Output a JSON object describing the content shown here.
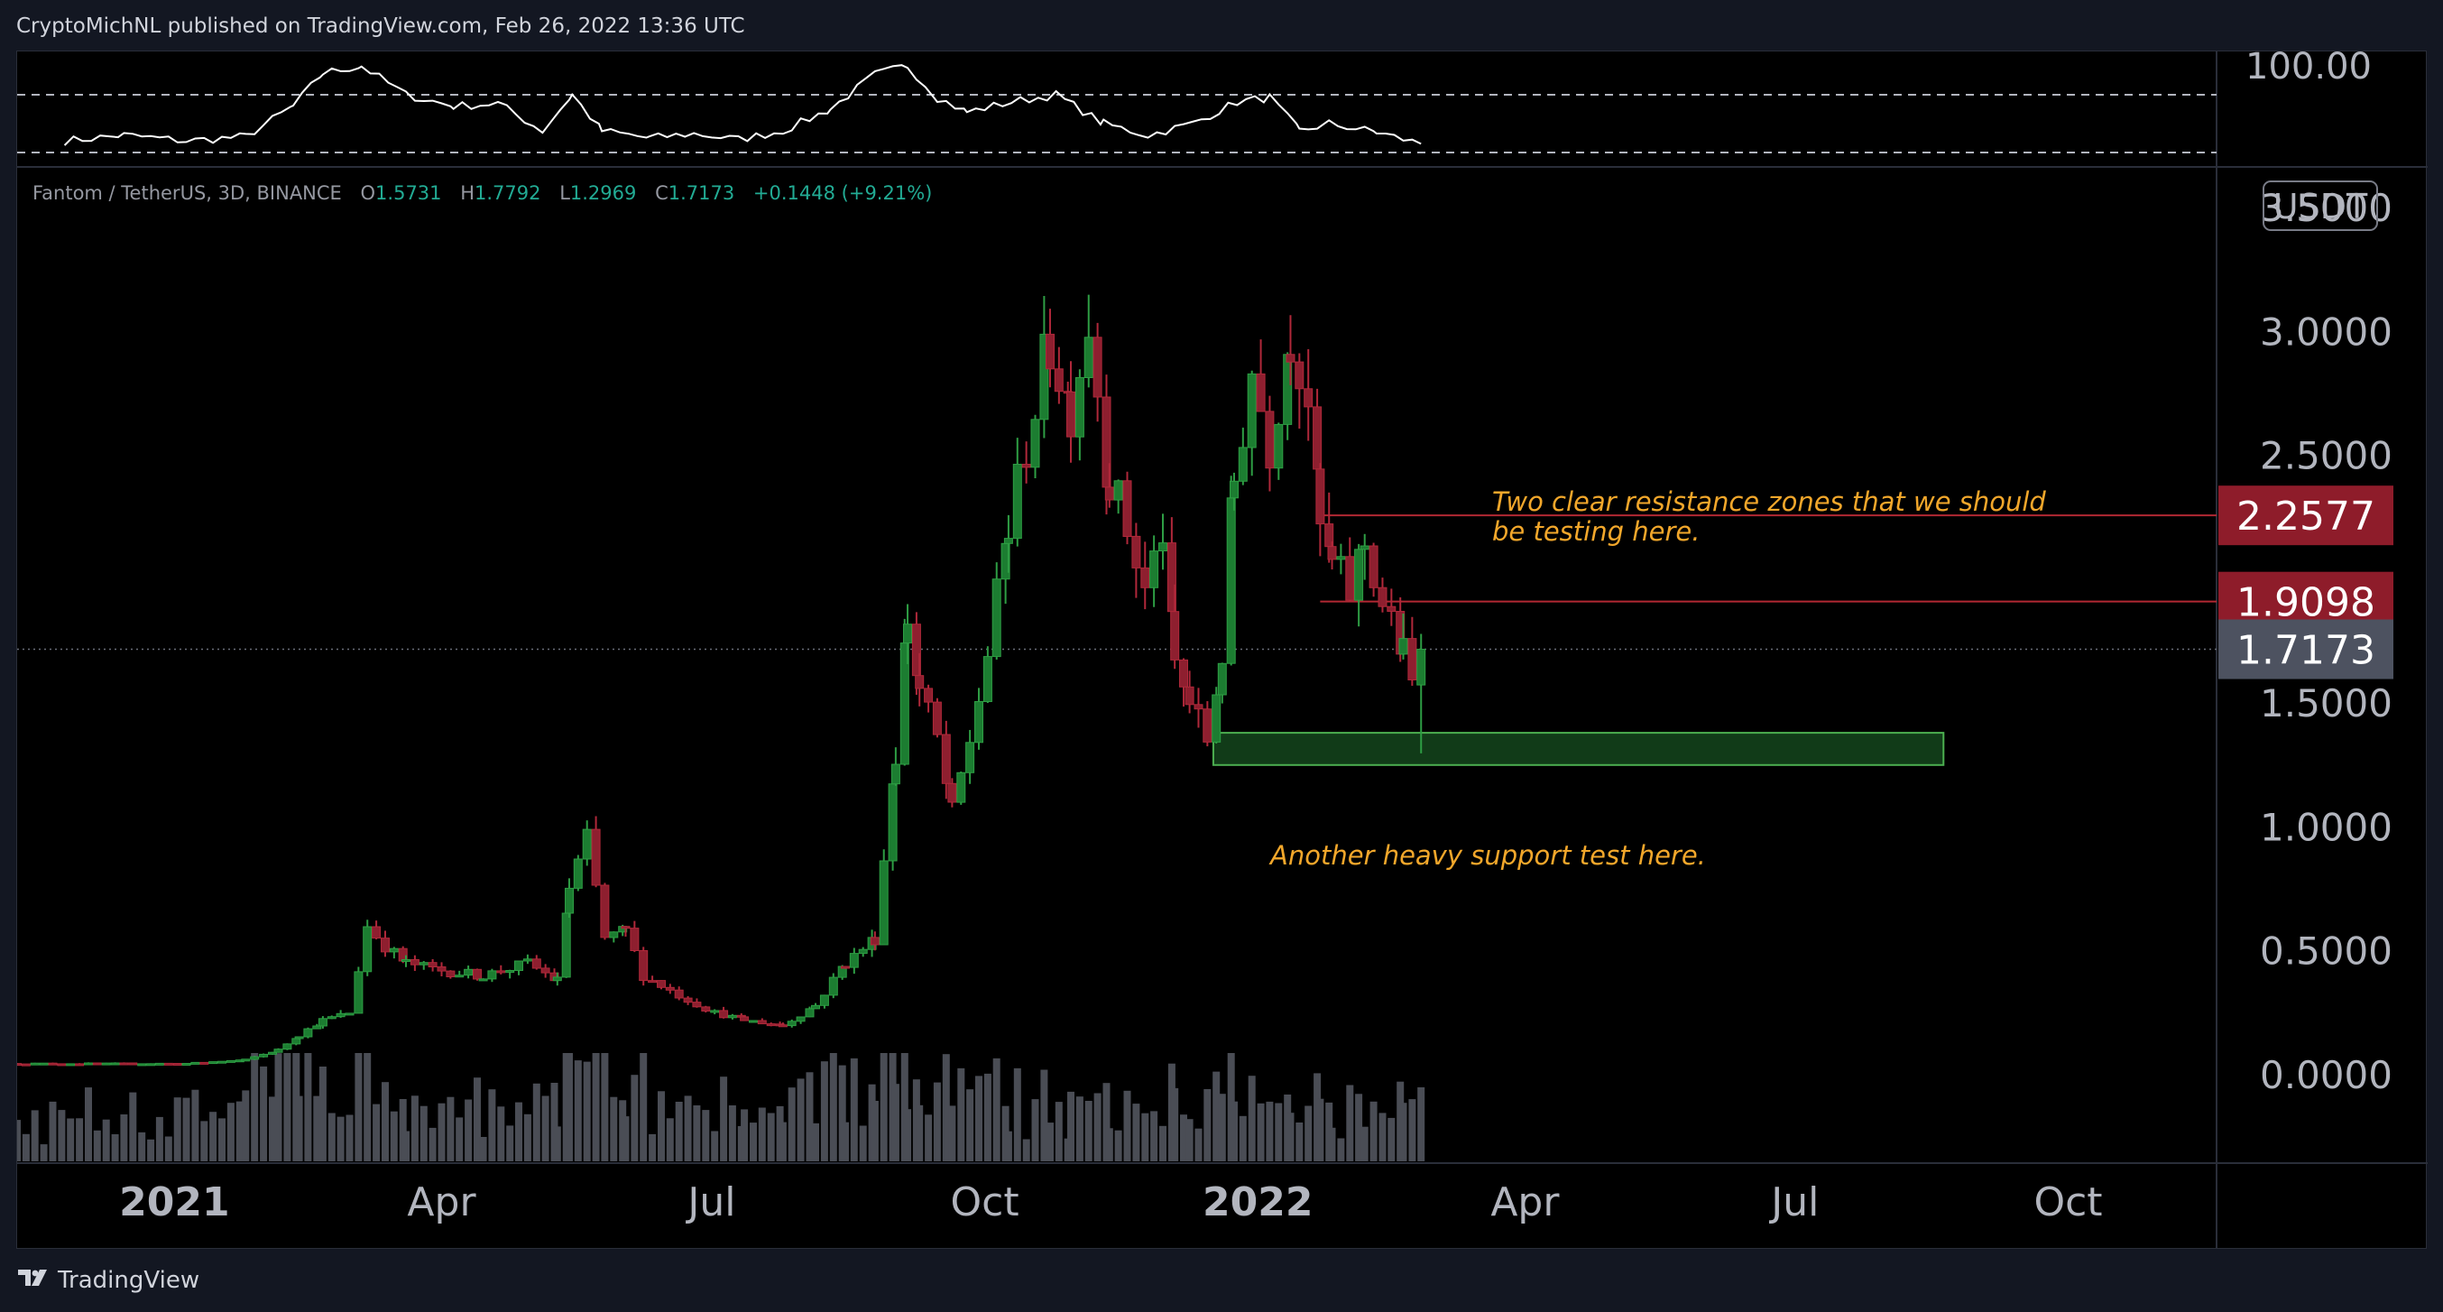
{
  "header": {
    "published_by": "CryptoMichNL published on TradingView.com, Feb 26, 2022 13:36 UTC"
  },
  "footer": {
    "brand": "TradingView",
    "logo_icon": "tradingview-logo-icon"
  },
  "colors": {
    "up": "#26a69a",
    "down": "#ef5350",
    "up_dark": "#1b7a3a",
    "down_dark": "#8b1d2c",
    "resistance_label": "#8e1c2a",
    "price_label": "#4d5260",
    "zone_fill": "#1f6b2c",
    "zone_border": "#4caf50",
    "note": "#f2a72b"
  },
  "legend": {
    "symbol": "Fantom / TetherUS, 3D, BINANCE",
    "open_label": "O",
    "open": "1.5731",
    "high_label": "H",
    "high": "1.7792",
    "low_label": "L",
    "low": "1.2969",
    "close_label": "C",
    "close": "1.7173",
    "change": "+0.1448 (+9.21%)"
  },
  "notes": {
    "resistance": [
      "Two clear resistance zones that we should",
      "be testing here."
    ],
    "support": "Another heavy support test here."
  },
  "chart_data": [
    {
      "type": "line",
      "indicator": "oscillator",
      "y_axis_labels": [
        "100.00"
      ],
      "dashed_levels": [
        70,
        30
      ],
      "ylim": [
        20,
        100
      ],
      "x": [
        "2020-11-25",
        "2020-12-15",
        "2021-01-05",
        "2021-01-25",
        "2021-02-10",
        "2021-02-20",
        "2021-03-05",
        "2021-03-20",
        "2021-04-05",
        "2021-04-20",
        "2021-05-05",
        "2021-05-15",
        "2021-05-25",
        "2021-06-10",
        "2021-06-25",
        "2021-07-10",
        "2021-07-25",
        "2021-08-10",
        "2021-08-25",
        "2021-09-05",
        "2021-09-15",
        "2021-09-25",
        "2021-10-10",
        "2021-10-25",
        "2021-11-10",
        "2021-11-25",
        "2021-12-10",
        "2021-12-25",
        "2022-01-05",
        "2022-01-15",
        "2022-01-25",
        "2022-02-10",
        "2022-02-25"
      ],
      "values": [
        38,
        42,
        38,
        41,
        62,
        85,
        90,
        70,
        62,
        64,
        45,
        70,
        45,
        40,
        43,
        39,
        45,
        60,
        84,
        90,
        68,
        58,
        65,
        70,
        50,
        42,
        50,
        65,
        68,
        45,
        50,
        44,
        36
      ]
    },
    {
      "type": "candlestick",
      "title": "Fantom / TetherUS, 3D, BINANCE",
      "y_tick_labels": [
        "3.5000",
        "3.0000",
        "2.5000",
        "1.5000",
        "1.0000",
        "0.5000",
        "0.0000"
      ],
      "price_labels": [
        {
          "value": 2.2577,
          "text": "2.2577",
          "kind": "resistance"
        },
        {
          "value": 1.9098,
          "text": "1.9098",
          "kind": "resistance"
        },
        {
          "value": 1.7173,
          "text": "1.7173",
          "kind": "last"
        }
      ],
      "axis_unit": "USDT",
      "x_tick_labels": [
        "2021",
        "Apr",
        "Jul",
        "Oct",
        "2022",
        "Apr",
        "Jul",
        "Oct"
      ],
      "x_tick_dates": [
        "2021-01-01",
        "2021-04-01",
        "2021-07-01",
        "2021-10-01",
        "2022-01-01",
        "2022-04-01",
        "2022-07-01",
        "2022-10-01"
      ],
      "x_range": [
        "2020-11-09",
        "2022-11-20"
      ],
      "ylim": [
        -0.35,
        3.65
      ],
      "resistance_levels": [
        2.2577,
        1.9098
      ],
      "last_price": 1.7173,
      "support_zone": {
        "low": 1.25,
        "high": 1.38,
        "from": "2021-12-17",
        "to": "2022-08-20"
      },
      "anchors": [
        [
          "2020-11-09",
          0.045
        ],
        [
          "2021-01-05",
          0.045
        ],
        [
          "2021-01-25",
          0.06
        ],
        [
          "2021-02-05",
          0.1
        ],
        [
          "2021-02-12",
          0.16
        ],
        [
          "2021-02-20",
          0.22
        ],
        [
          "2021-03-01",
          0.25
        ],
        [
          "2021-03-07",
          0.6
        ],
        [
          "2021-03-13",
          0.52
        ],
        [
          "2021-03-20",
          0.45
        ],
        [
          "2021-04-01",
          0.42
        ],
        [
          "2021-04-15",
          0.4
        ],
        [
          "2021-04-30",
          0.45
        ],
        [
          "2021-05-10",
          0.38
        ],
        [
          "2021-05-14",
          0.75
        ],
        [
          "2021-05-20",
          0.95
        ],
        [
          "2021-05-26",
          0.55
        ],
        [
          "2021-06-02",
          0.58
        ],
        [
          "2021-06-08",
          0.4
        ],
        [
          "2021-06-20",
          0.32
        ],
        [
          "2021-07-02",
          0.25
        ],
        [
          "2021-07-12",
          0.22
        ],
        [
          "2021-07-25",
          0.2
        ],
        [
          "2021-08-05",
          0.28
        ],
        [
          "2021-08-15",
          0.45
        ],
        [
          "2021-08-25",
          0.55
        ],
        [
          "2021-09-01",
          1.3
        ],
        [
          "2021-09-05",
          1.85
        ],
        [
          "2021-09-09",
          1.55
        ],
        [
          "2021-09-15",
          1.35
        ],
        [
          "2021-09-20",
          1.05
        ],
        [
          "2021-09-26",
          1.35
        ],
        [
          "2021-10-02",
          1.7
        ],
        [
          "2021-10-09",
          2.2
        ],
        [
          "2021-10-15",
          2.55
        ],
        [
          "2021-10-23",
          2.95
        ],
        [
          "2021-10-30",
          2.7
        ],
        [
          "2021-11-05",
          3.05
        ],
        [
          "2021-11-12",
          2.4
        ],
        [
          "2021-11-18",
          2.2
        ],
        [
          "2021-11-24",
          1.95
        ],
        [
          "2021-11-30",
          2.2
        ],
        [
          "2021-12-04",
          1.65
        ],
        [
          "2021-12-09",
          1.5
        ],
        [
          "2021-12-15",
          1.35
        ],
        [
          "2021-12-20",
          1.7
        ],
        [
          "2021-12-24",
          2.4
        ],
        [
          "2021-12-30",
          2.85
        ],
        [
          "2022-01-05",
          2.55
        ],
        [
          "2022-01-12",
          3.0
        ],
        [
          "2022-01-18",
          2.75
        ],
        [
          "2022-01-22",
          2.2
        ],
        [
          "2022-01-26",
          2.05
        ],
        [
          "2022-02-01",
          1.95
        ],
        [
          "2022-02-06",
          2.15
        ],
        [
          "2022-02-12",
          1.9
        ],
        [
          "2022-02-19",
          1.7
        ],
        [
          "2022-02-22",
          1.57
        ],
        [
          "2022-02-25",
          1.7173
        ]
      ],
      "volume_max": 1.0
    }
  ]
}
